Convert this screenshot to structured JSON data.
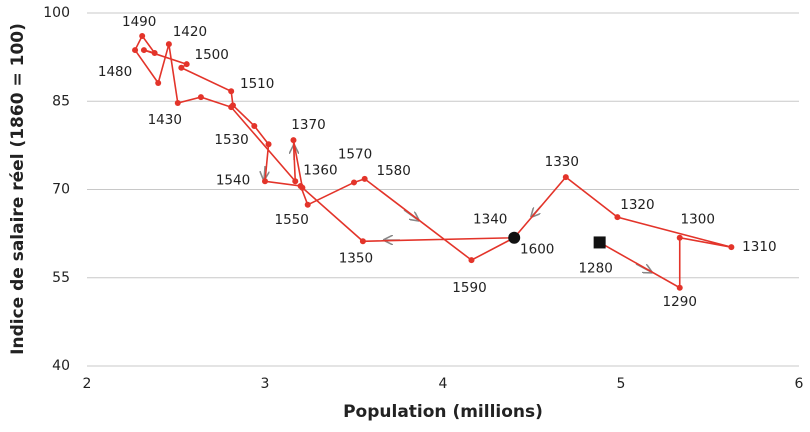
{
  "chart_data": {
    "type": "line",
    "x_label": "Population (millions)",
    "y_label": "Indice de salaire réel (1860 = 100)",
    "color": "#e3342a",
    "xlim": [
      2,
      6
    ],
    "xticks": [
      2,
      3,
      4,
      5,
      6
    ],
    "ylim": [
      40,
      100
    ],
    "yticks": [
      40,
      55,
      70,
      85,
      100
    ],
    "grid": true,
    "labels": [
      "1280",
      "1290",
      "1300",
      "1310",
      "1320",
      "1330",
      "1340",
      "1350",
      "1360",
      "1370",
      null,
      null,
      null,
      "1430",
      "1420",
      null,
      "1480",
      "1490",
      null,
      null,
      "1500",
      null,
      "1510",
      null,
      null,
      "1530",
      "1540",
      null,
      "1550",
      "1570",
      "1580",
      "1590",
      "1600"
    ],
    "x": [
      4.88,
      5.33,
      5.33,
      5.62,
      4.98,
      4.69,
      4.4,
      3.55,
      3.21,
      3.16,
      3.17,
      2.81,
      2.64,
      2.51,
      2.46,
      2.4,
      2.27,
      2.31,
      2.38,
      2.32,
      2.56,
      2.53,
      2.81,
      2.82,
      2.94,
      3.02,
      3.0,
      3.2,
      3.24,
      3.5,
      3.56,
      4.16,
      4.4
    ],
    "y": [
      61.0,
      53.3,
      61.8,
      60.2,
      65.3,
      72.1,
      61.8,
      61.2,
      70.3,
      78.4,
      71.4,
      84.0,
      85.7,
      84.7,
      94.7,
      88.1,
      93.7,
      96.1,
      93.2,
      93.7,
      91.3,
      90.7,
      86.7,
      84.3,
      80.8,
      77.7,
      71.4,
      70.6,
      67.4,
      71.2,
      71.8,
      58.0,
      61.8
    ]
  }
}
